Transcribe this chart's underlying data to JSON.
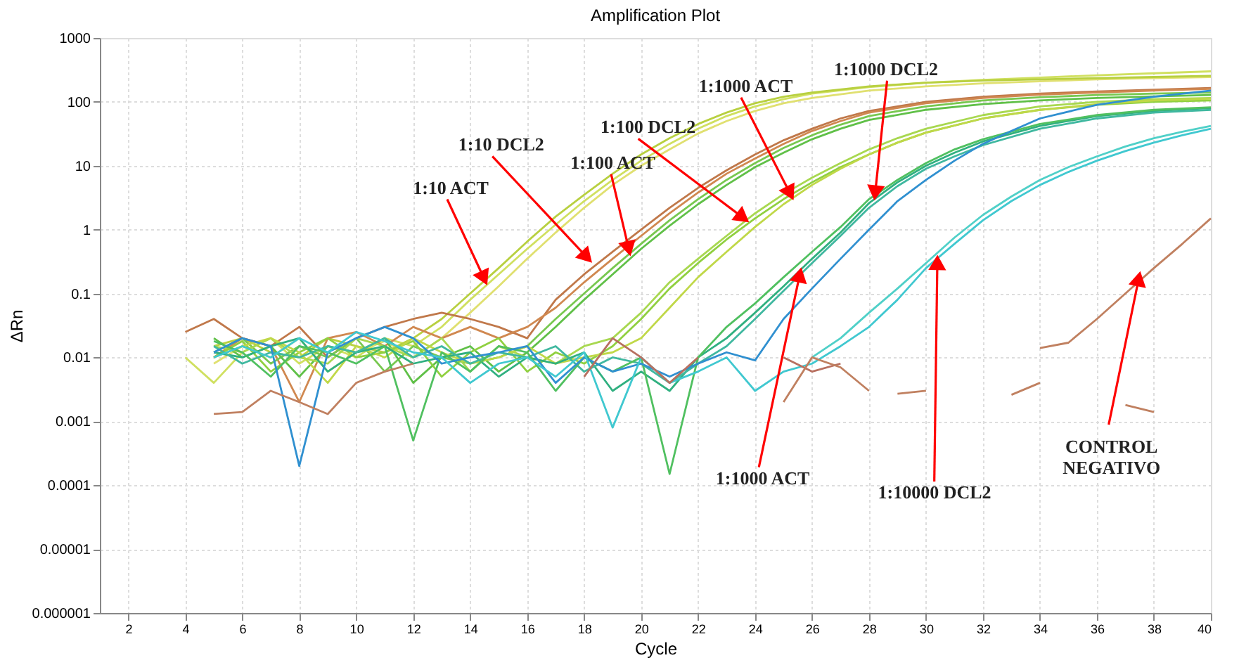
{
  "chart_data": {
    "type": "line",
    "title": "Amplification Plot",
    "xlabel": "Cycle",
    "ylabel": "ΔRn",
    "log": "y",
    "grid": true,
    "legend": false,
    "marker": "none",
    "line_style": "solid",
    "xlim": [
      1,
      40
    ],
    "xticks": [
      2,
      4,
      6,
      8,
      10,
      12,
      14,
      16,
      18,
      20,
      22,
      24,
      26,
      28,
      30,
      32,
      34,
      36,
      38,
      40
    ],
    "ylim": [
      1e-06,
      1000
    ],
    "yticks": [
      {
        "value": 1e-06,
        "label": "0.000001"
      },
      {
        "value": 1e-05,
        "label": "0.00001"
      },
      0.0001,
      0.001,
      0.01,
      0.1,
      1,
      10,
      100,
      1000
    ],
    "series": [
      {
        "color": "#d0e060",
        "x": [
          4,
          5,
          6,
          7,
          8,
          9,
          10,
          11,
          12,
          13,
          14,
          15,
          16,
          17,
          18,
          19,
          20,
          21,
          22,
          23,
          24,
          25,
          26,
          28,
          30,
          32,
          34,
          36,
          38,
          40
        ],
        "values": [
          0.01,
          0.004,
          0.012,
          0.02,
          0.008,
          0.015,
          0.01,
          0.02,
          0.015,
          0.03,
          0.08,
          0.2,
          0.5,
          1.2,
          2.8,
          6,
          12,
          22,
          38,
          60,
          85,
          110,
          135,
          170,
          200,
          220,
          240,
          260,
          280,
          300
        ]
      },
      {
        "color": "#e0e070",
        "x": [
          5,
          6,
          7,
          8,
          9,
          10,
          11,
          12,
          13,
          14,
          15,
          16,
          17,
          18,
          19,
          20,
          21,
          22,
          23,
          24,
          25,
          26,
          28,
          30,
          32,
          34,
          36,
          38,
          40
        ],
        "values": [
          0.008,
          0.015,
          0.01,
          0.02,
          0.006,
          0.012,
          0.018,
          0.01,
          0.02,
          0.05,
          0.13,
          0.35,
          0.9,
          2.2,
          5,
          10,
          18,
          32,
          50,
          72,
          95,
          115,
          150,
          175,
          195,
          210,
          225,
          235,
          245
        ]
      },
      {
        "color": "#b8d040",
        "x": [
          5,
          6,
          7,
          8,
          9,
          10,
          11,
          12,
          13,
          14,
          15,
          16,
          17,
          18,
          19,
          20,
          21,
          22,
          23,
          24,
          25,
          26,
          28,
          30,
          32,
          34,
          36,
          38,
          40
        ],
        "values": [
          0.015,
          0.02,
          0.012,
          0.01,
          0.02,
          0.015,
          0.012,
          0.02,
          0.04,
          0.1,
          0.25,
          0.65,
          1.6,
          3.5,
          7.5,
          15,
          27,
          45,
          68,
          95,
          120,
          140,
          175,
          200,
          215,
          225,
          235,
          245,
          255
        ]
      },
      {
        "color": "#c0784a",
        "x": [
          4,
          5,
          6,
          7,
          8,
          9,
          10,
          11,
          12,
          13,
          14,
          15,
          16,
          17,
          18,
          19,
          20,
          21,
          22,
          23,
          24,
          25,
          26,
          27,
          28,
          30,
          32,
          34,
          36,
          38,
          40
        ],
        "values": [
          0.025,
          0.04,
          0.02,
          0.015,
          0.03,
          0.01,
          0.02,
          0.03,
          0.04,
          0.05,
          0.04,
          0.03,
          0.02,
          0.08,
          0.2,
          0.45,
          1.0,
          2.2,
          4.5,
          8.5,
          15,
          25,
          38,
          55,
          72,
          100,
          120,
          135,
          145,
          155,
          165
        ]
      },
      {
        "color": "#d08850",
        "x": [
          5,
          6,
          7,
          8,
          9,
          10,
          11,
          12,
          13,
          14,
          15,
          16,
          17,
          18,
          19,
          20,
          21,
          22,
          23,
          24,
          25,
          26,
          27,
          28,
          30,
          32,
          34,
          36,
          38,
          40
        ],
        "values": [
          0.01,
          0.02,
          0.015,
          0.002,
          0.02,
          0.025,
          0.015,
          0.03,
          0.02,
          0.03,
          0.02,
          0.03,
          0.06,
          0.15,
          0.35,
          0.8,
          1.8,
          3.8,
          7.5,
          13,
          22,
          35,
          50,
          68,
          95,
          115,
          130,
          140,
          150,
          160
        ]
      },
      {
        "color": "#78c850",
        "x": [
          5,
          6,
          7,
          8,
          9,
          10,
          11,
          12,
          13,
          14,
          15,
          16,
          17,
          18,
          19,
          20,
          21,
          22,
          23,
          24,
          25,
          26,
          27,
          28,
          30,
          32,
          34,
          36,
          38,
          40
        ],
        "values": [
          0.012,
          0.02,
          0.008,
          0.015,
          0.01,
          0.02,
          0.006,
          0.015,
          0.01,
          0.008,
          0.01,
          0.015,
          0.04,
          0.1,
          0.25,
          0.6,
          1.4,
          3,
          6,
          11,
          19,
          30,
          44,
          60,
          85,
          105,
          118,
          128,
          135,
          140
        ]
      },
      {
        "color": "#60c048",
        "x": [
          5,
          6,
          7,
          8,
          9,
          10,
          11,
          12,
          13,
          14,
          15,
          16,
          17,
          18,
          19,
          20,
          21,
          22,
          23,
          24,
          25,
          26,
          27,
          28,
          30,
          32,
          34,
          36,
          38,
          40
        ],
        "values": [
          0.02,
          0.01,
          0.015,
          0.005,
          0.015,
          0.012,
          0.02,
          0.004,
          0.01,
          0.015,
          0.006,
          0.012,
          0.03,
          0.08,
          0.2,
          0.5,
          1.15,
          2.5,
          5,
          9.5,
          16,
          26,
          38,
          52,
          75,
          92,
          105,
          115,
          122,
          128
        ]
      },
      {
        "color": "#a8d850",
        "x": [
          5,
          6,
          7,
          8,
          9,
          10,
          11,
          12,
          13,
          14,
          15,
          16,
          17,
          18,
          19,
          20,
          21,
          22,
          23,
          24,
          25,
          26,
          27,
          28,
          29,
          30,
          32,
          34,
          36,
          38,
          40
        ],
        "values": [
          0.015,
          0.012,
          0.02,
          0.01,
          0.008,
          0.02,
          0.015,
          0.01,
          0.02,
          0.006,
          0.015,
          0.01,
          0.008,
          0.015,
          0.02,
          0.05,
          0.15,
          0.35,
          0.8,
          1.8,
          3.6,
          6.5,
          11,
          18,
          27,
          38,
          62,
          85,
          100,
          110,
          115
        ]
      },
      {
        "color": "#90d040",
        "x": [
          5,
          6,
          7,
          8,
          9,
          10,
          11,
          12,
          13,
          14,
          15,
          16,
          17,
          18,
          19,
          20,
          21,
          22,
          23,
          24,
          25,
          26,
          27,
          28,
          29,
          30,
          32,
          34,
          36,
          38,
          40
        ],
        "values": [
          0.01,
          0.018,
          0.006,
          0.012,
          0.02,
          0.01,
          0.012,
          0.018,
          0.005,
          0.012,
          0.02,
          0.006,
          0.012,
          0.008,
          0.015,
          0.04,
          0.12,
          0.3,
          0.7,
          1.5,
          3,
          5.5,
          9.5,
          15,
          23,
          33,
          55,
          75,
          90,
          100,
          105
        ]
      },
      {
        "color": "#c0d848",
        "x": [
          5,
          6,
          7,
          8,
          9,
          10,
          11,
          12,
          13,
          14,
          15,
          16,
          17,
          18,
          19,
          20,
          21,
          22,
          23,
          24,
          25,
          26,
          27,
          28,
          29,
          30,
          32,
          34,
          36,
          38,
          40
        ],
        "values": [
          0.01,
          0.015,
          0.02,
          0.012,
          0.004,
          0.015,
          0.01,
          0.02,
          0.012,
          0.008,
          0.01,
          0.015,
          0.008,
          0.01,
          0.012,
          0.02,
          0.06,
          0.18,
          0.45,
          1.1,
          2.5,
          5,
          9,
          15,
          23,
          33,
          55,
          75,
          92,
          105,
          112
        ]
      },
      {
        "color": "#30b080",
        "x": [
          5,
          6,
          7,
          8,
          9,
          10,
          11,
          12,
          13,
          14,
          15,
          16,
          17,
          18,
          19,
          20,
          21,
          22,
          23,
          24,
          25,
          26,
          27,
          28,
          29,
          30,
          31,
          32,
          34,
          36,
          38,
          40
        ],
        "values": [
          0.012,
          0.01,
          0.015,
          0.02,
          0.006,
          0.012,
          0.015,
          0.008,
          0.01,
          0.012,
          0.005,
          0.01,
          0.008,
          0.012,
          0.003,
          0.006,
          0.003,
          0.01,
          0.02,
          0.05,
          0.13,
          0.35,
          0.9,
          2.6,
          5.5,
          10,
          16,
          24,
          42,
          60,
          72,
          80
        ]
      },
      {
        "color": "#40b8a0",
        "x": [
          5,
          6,
          7,
          8,
          9,
          10,
          11,
          12,
          13,
          14,
          15,
          16,
          17,
          18,
          19,
          20,
          21,
          22,
          23,
          24,
          25,
          26,
          27,
          28,
          29,
          30,
          31,
          32,
          34,
          36,
          38,
          40
        ],
        "values": [
          0.015,
          0.008,
          0.012,
          0.01,
          0.015,
          0.012,
          0.02,
          0.01,
          0.015,
          0.008,
          0.012,
          0.01,
          0.015,
          0.006,
          0.01,
          0.008,
          0.004,
          0.008,
          0.015,
          0.04,
          0.11,
          0.3,
          0.8,
          2.2,
          4.8,
          9,
          14,
          21,
          38,
          55,
          68,
          75
        ]
      },
      {
        "color": "#50c060",
        "x": [
          5,
          6,
          7,
          8,
          9,
          10,
          11,
          12,
          13,
          14,
          15,
          16,
          17,
          18,
          19,
          20,
          21,
          22,
          23,
          24,
          25,
          26,
          27,
          28,
          29,
          30,
          31,
          32,
          34,
          36,
          38,
          40
        ],
        "values": [
          0.018,
          0.012,
          0.005,
          0.015,
          0.012,
          0.008,
          0.015,
          0.0005,
          0.012,
          0.006,
          0.015,
          0.012,
          0.003,
          0.01,
          0.006,
          0.01,
          0.00015,
          0.01,
          0.03,
          0.07,
          0.18,
          0.45,
          1.1,
          3,
          6,
          11,
          18,
          26,
          45,
          62,
          75,
          82
        ]
      },
      {
        "color": "#3090d0",
        "x": [
          5,
          6,
          7,
          8,
          9,
          10,
          11,
          12,
          13,
          14,
          15,
          16,
          17,
          18,
          19,
          20,
          21,
          22,
          23,
          24,
          25,
          26,
          27,
          28,
          29,
          30,
          31,
          32,
          33,
          34,
          36,
          38,
          40
        ],
        "values": [
          0.012,
          0.02,
          0.015,
          0.0002,
          0.012,
          0.02,
          0.03,
          0.02,
          0.008,
          0.01,
          0.012,
          0.015,
          0.004,
          0.01,
          0.006,
          0.008,
          0.005,
          0.008,
          0.012,
          0.009,
          0.04,
          0.12,
          0.35,
          1,
          2.8,
          6,
          12,
          22,
          35,
          55,
          90,
          120,
          150
        ]
      },
      {
        "color": "#40c8d0",
        "x": [
          5,
          6,
          7,
          8,
          9,
          10,
          11,
          12,
          13,
          14,
          15,
          16,
          17,
          18,
          19,
          20,
          21,
          22,
          23,
          24,
          25,
          26,
          27,
          28,
          29,
          30,
          31,
          32,
          33,
          34,
          35,
          36,
          37,
          38,
          39,
          40
        ],
        "values": [
          0.01,
          0.015,
          0.01,
          0.02,
          0.012,
          0.025,
          0.018,
          0.012,
          0.01,
          0.004,
          0.008,
          0.01,
          0.005,
          0.012,
          0.0008,
          0.01,
          0.004,
          0.006,
          0.01,
          0.003,
          0.006,
          0.008,
          0.015,
          0.03,
          0.08,
          0.25,
          0.6,
          1.4,
          2.8,
          5,
          8,
          12,
          17,
          23,
          30,
          38
        ]
      },
      {
        "color": "#50d0c8",
        "x": [
          26,
          27,
          28,
          29,
          30,
          31,
          32,
          33,
          34,
          35,
          36,
          37,
          38,
          39,
          40
        ],
        "values": [
          0.01,
          0.02,
          0.05,
          0.12,
          0.3,
          0.75,
          1.7,
          3.3,
          6,
          9.5,
          14,
          20,
          27,
          34,
          42
        ]
      },
      {
        "color": "#c08060",
        "x": [
          34,
          35,
          36,
          37,
          38,
          39,
          40
        ],
        "values": [
          0.014,
          0.017,
          0.04,
          0.1,
          0.25,
          0.6,
          1.5
        ]
      },
      {
        "color": "#b87060",
        "x": [
          18,
          19,
          20,
          21,
          22
        ],
        "values": [
          0.005,
          0.02,
          0.01,
          0.004,
          0.01
        ]
      },
      {
        "color": "#b87060",
        "x": [
          25,
          26,
          27
        ],
        "values": [
          0.01,
          0.006,
          0.008
        ]
      },
      {
        "color": "#c08060",
        "x": [
          25,
          26,
          27,
          28
        ],
        "values": [
          0.002,
          0.01,
          0.007,
          0.003
        ]
      },
      {
        "color": "#c08060",
        "x": [
          29,
          30
        ],
        "values": [
          0.0027,
          0.003
        ]
      },
      {
        "color": "#c08060",
        "x": [
          33,
          34
        ],
        "values": [
          0.0026,
          0.004
        ]
      },
      {
        "color": "#c08060",
        "x": [
          37,
          38
        ],
        "values": [
          0.0018,
          0.0014
        ]
      },
      {
        "color": "#c08060",
        "x": [
          5,
          6,
          7,
          8,
          9,
          10,
          11,
          12
        ],
        "values": [
          0.0013,
          0.0014,
          0.003,
          0.002,
          0.0013,
          0.004,
          0.006,
          0.008
        ]
      }
    ],
    "annotations": [
      {
        "text": "1:10 ACT",
        "x": 14.55,
        "y": 0.15
      },
      {
        "text": "1:10 DCL2",
        "x": 18.2,
        "y": 0.33
      },
      {
        "text": "1:100 ACT",
        "x": 19.6,
        "y": 0.43
      },
      {
        "text": "1:100 DCL2",
        "x": 23.7,
        "y": 1.4
      },
      {
        "text": "1:1000 ACT",
        "x": 25.3,
        "y": 3.2
      },
      {
        "text": "1:1000 DCL2",
        "x": 28.2,
        "y": 3.2
      },
      {
        "text": "1:1000 ACT",
        "x": 25.6,
        "y": 0.23
      },
      {
        "text": "1:10000 DCL2",
        "x": 30.4,
        "y": 0.36
      },
      {
        "text": "CONTROL\nNEGATIVO",
        "x": 37.5,
        "y": 0.2
      }
    ]
  }
}
